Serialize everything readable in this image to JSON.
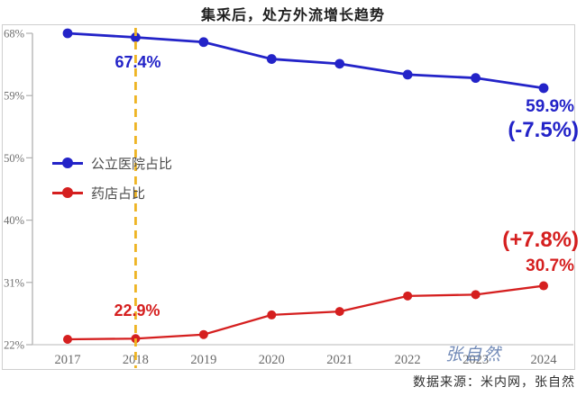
{
  "title": "集采后，处方外流增长趋势",
  "chart_data": {
    "type": "line",
    "x": [
      2017,
      2018,
      2019,
      2020,
      2021,
      2022,
      2023,
      2024
    ],
    "series": [
      {
        "name": "公立医院占比",
        "color": "#2323c8",
        "values": [
          68.0,
          67.4,
          66.7,
          64.2,
          63.5,
          61.9,
          61.4,
          59.9
        ]
      },
      {
        "name": "药店占比",
        "color": "#d51f1f",
        "values": [
          22.8,
          22.9,
          23.5,
          26.4,
          26.9,
          29.2,
          29.4,
          30.7
        ]
      }
    ],
    "ylim": [
      22,
      68
    ],
    "ytick_labels": [
      "68%",
      "59%",
      "50%",
      "40%",
      "31%",
      "22%"
    ],
    "grid": false,
    "legend_position": "middle-left",
    "reference_line": {
      "x": 2018,
      "color": "#eeb423",
      "style": "dashed"
    }
  },
  "legend": {
    "items": [
      {
        "label": "公立医院占比",
        "color": "#2323c8"
      },
      {
        "label": "药店占比",
        "color": "#d51f1f"
      }
    ]
  },
  "annotations": {
    "blue_start": "67.4%",
    "blue_end": "59.9%",
    "blue_change": "(-7.5%)",
    "red_start": "22.9%",
    "red_end": "30.7%",
    "red_change": "(+7.8%)"
  },
  "watermark": "张自然",
  "source": "数据来源：米内网，张自然"
}
